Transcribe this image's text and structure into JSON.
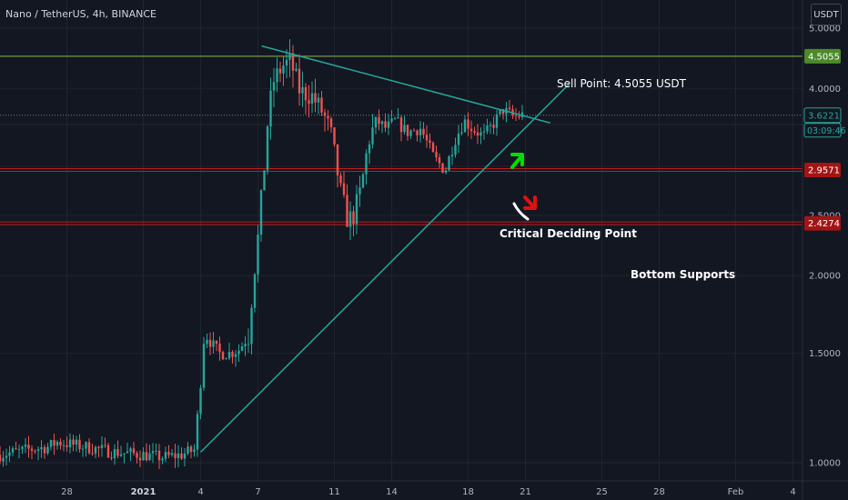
{
  "header": {
    "symbol_title": "Nano / TetherUS, 4h, BINANCE",
    "currency_unit": "USDT"
  },
  "chart_data": {
    "type": "candlestick",
    "title": "Nano / TetherUS, 4h, BINANCE",
    "ylabel": "",
    "xlabel": "",
    "y_scale": "log",
    "ylim": [
      0.935,
      5.55
    ],
    "y_ticks": [
      1.0,
      1.5,
      2.0,
      2.5,
      3.0,
      3.5,
      4.0,
      4.5,
      5.0
    ],
    "y_tick_labels": [
      "1.0000",
      "1.5000",
      "2.0000",
      "2.5000",
      "3.0000",
      "3.5000",
      "4.0000",
      "4.5000",
      "5.0000"
    ],
    "x_ticks": [
      {
        "day": -4,
        "label": "28"
      },
      {
        "day": 0,
        "label": "2021"
      },
      {
        "day": 3,
        "label": "4"
      },
      {
        "day": 6,
        "label": "7"
      },
      {
        "day": 10,
        "label": "11"
      },
      {
        "day": 13,
        "label": "14"
      },
      {
        "day": 17,
        "label": "18"
      },
      {
        "day": 20,
        "label": "21"
      },
      {
        "day": 24,
        "label": "25"
      },
      {
        "day": 27,
        "label": "28"
      },
      {
        "day": 31,
        "label": "Feb"
      },
      {
        "day": 34,
        "label": "4"
      }
    ],
    "xlim": [
      -7.5,
      34.5
    ],
    "grid": true,
    "price_path": [
      [
        -7.5,
        1.03
      ],
      [
        -6,
        1.05
      ],
      [
        -5,
        1.06
      ],
      [
        -4.5,
        1.08
      ],
      [
        -3,
        1.06
      ],
      [
        -1.5,
        1.04
      ],
      [
        0,
        1.03
      ],
      [
        1,
        1.02
      ],
      [
        2,
        1.03
      ],
      [
        2.7,
        1.05
      ],
      [
        3.0,
        1.35
      ],
      [
        3.2,
        1.62
      ],
      [
        3.6,
        1.55
      ],
      [
        4.0,
        1.5
      ],
      [
        4.5,
        1.5
      ],
      [
        5.0,
        1.52
      ],
      [
        5.5,
        1.6
      ],
      [
        6.0,
        2.3
      ],
      [
        6.3,
        2.9
      ],
      [
        6.5,
        3.5
      ],
      [
        6.8,
        4.1
      ],
      [
        7.3,
        4.35
      ],
      [
        7.7,
        4.42
      ],
      [
        8.2,
        3.95
      ],
      [
        8.8,
        3.9
      ],
      [
        9.4,
        3.65
      ],
      [
        9.8,
        3.4
      ],
      [
        10.3,
        2.75
      ],
      [
        10.7,
        2.45
      ],
      [
        11.0,
        2.5
      ],
      [
        11.4,
        2.75
      ],
      [
        11.8,
        3.3
      ],
      [
        12.2,
        3.55
      ],
      [
        12.7,
        3.45
      ],
      [
        13.2,
        3.55
      ],
      [
        13.8,
        3.4
      ],
      [
        14.5,
        3.45
      ],
      [
        15.2,
        3.1
      ],
      [
        15.8,
        2.95
      ],
      [
        16.3,
        3.3
      ],
      [
        16.8,
        3.55
      ],
      [
        17.2,
        3.45
      ],
      [
        17.8,
        3.35
      ],
      [
        18.3,
        3.5
      ],
      [
        18.8,
        3.7
      ],
      [
        19.4,
        3.6
      ],
      [
        19.9,
        3.63
      ]
    ],
    "annotations": {
      "resistance_line": {
        "label": "Sell Point: 4.5055 USDT",
        "price": 4.5055,
        "price_label": "4.5055",
        "color": "#8ab34a"
      },
      "support_lines": [
        {
          "price": 2.9571,
          "price_label": "2.9571",
          "color": "#c21c1c"
        },
        {
          "price": 2.4274,
          "price_label": "2.4274",
          "color": "#c21c1c"
        }
      ],
      "support_label": "Bottom Supports",
      "current_price": {
        "price": 3.6221,
        "price_label": "3.6221",
        "countdown": "03:09:46",
        "color": "#26a69a"
      },
      "triangle_upper": {
        "from": [
          6.2,
          4.68
        ],
        "to": [
          21.3,
          3.52
        ],
        "color": "#26a69a"
      },
      "triangle_lower": {
        "from": [
          3.0,
          1.04
        ],
        "to": [
          22.3,
          4.07
        ],
        "color": "#26a69a"
      },
      "decision_label": "Critical Deciding Point",
      "up_arrow_color": "#00e000",
      "down_arrow_color": "#e01010"
    }
  }
}
